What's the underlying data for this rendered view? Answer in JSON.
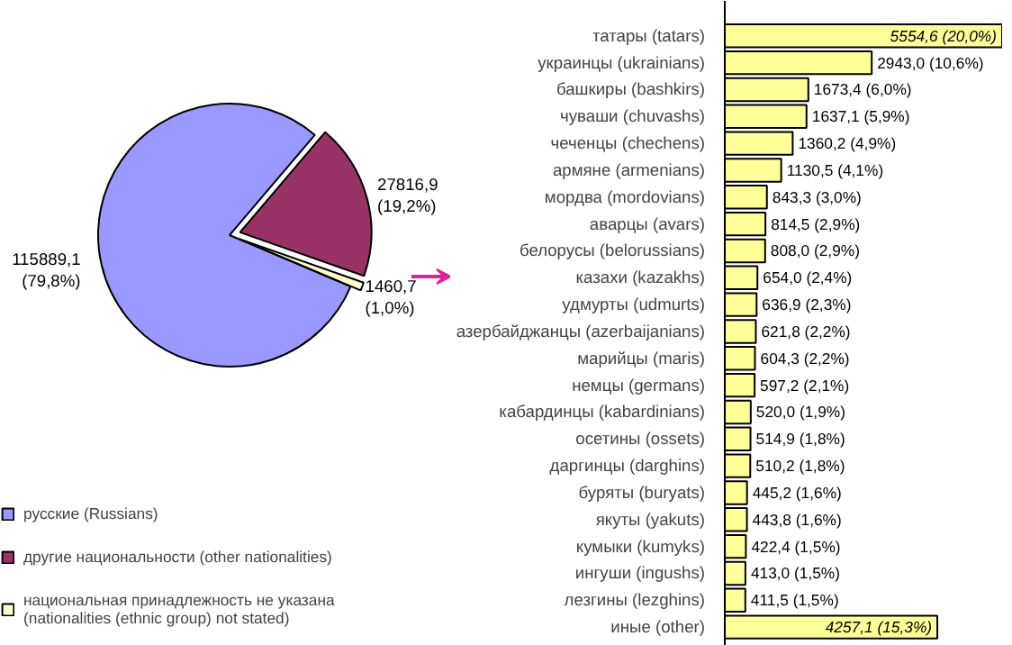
{
  "chart_data": [
    {
      "type": "pie",
      "categories": [
        "русские (Russians)",
        "другие национальности (other nationalities)",
        "национальная принадлежность не указана (nationalities (ethnic group) not stated)"
      ],
      "values": [
        115889.1,
        27816.9,
        1460.7
      ],
      "colors": [
        "#9999ff",
        "#993366",
        "#ffffcc"
      ],
      "value_labels": [
        "115889,1 (79,8%)",
        "27816,9 (19,2%)",
        "1460,7 (1,0%)"
      ],
      "legend": "bottom left"
    },
    {
      "type": "bar",
      "orientation": "horizontal",
      "color": "#ffff99",
      "categories": [
        "татары (tatars)",
        "украинцы (ukrainians)",
        "башкиры (bashkirs)",
        "чуваши (chuvashs)",
        "чеченцы (chechens)",
        "армяне (armenians)",
        "мордва (mordovians)",
        "аварцы (avars)",
        "белорусы (belorussians)",
        "казахи (kazakhs)",
        "удмурты (udmurts)",
        "азербайджанцы (azerbaijanians)",
        "марийцы (maris)",
        "немцы (germans)",
        "кабардинцы (kabardinians)",
        "осетины (ossets)",
        "даргинцы (darghins)",
        "буряты (buryats)",
        "якуты (yakuts)",
        "кумыки (kumyks)",
        "ингуши (ingushs)",
        "лезгины (lezghins)",
        "иные (other)"
      ],
      "values": [
        5554.6,
        2943.0,
        1673.4,
        1637.1,
        1360.2,
        1130.5,
        843.3,
        814.5,
        808.0,
        654.0,
        636.9,
        621.8,
        604.3,
        597.2,
        520.0,
        514.9,
        510.2,
        445.2,
        443.8,
        422.4,
        413.0,
        411.5,
        4257.1
      ],
      "value_labels": [
        "5554,6 (20,0%)",
        "2943,0 (10,6%)",
        "1673,4 (6,0%)",
        "1637,1 (5,9%)",
        "1360,2 (4,9%)",
        "1130,5 (4,1%)",
        "843,3 (3,0%)",
        "814,5 (2,9%)",
        "808,0 (2,9%)",
        "654,0 (2,4%)",
        "636,9 (2,3%)",
        "621,8 (2,2%)",
        "604,3 (2,2%)",
        "597,2 (2,1%)",
        "520,0 (1,9%)",
        "514,9 (1,8%)",
        "510,2 (1,8%)",
        "445,2 (1,6%)",
        "443,8 (1,6%)",
        "422,4 (1,5%)",
        "413,0 (1,5%)",
        "411,5 (1,5%)",
        "4257,1 (15,3%)"
      ]
    }
  ]
}
